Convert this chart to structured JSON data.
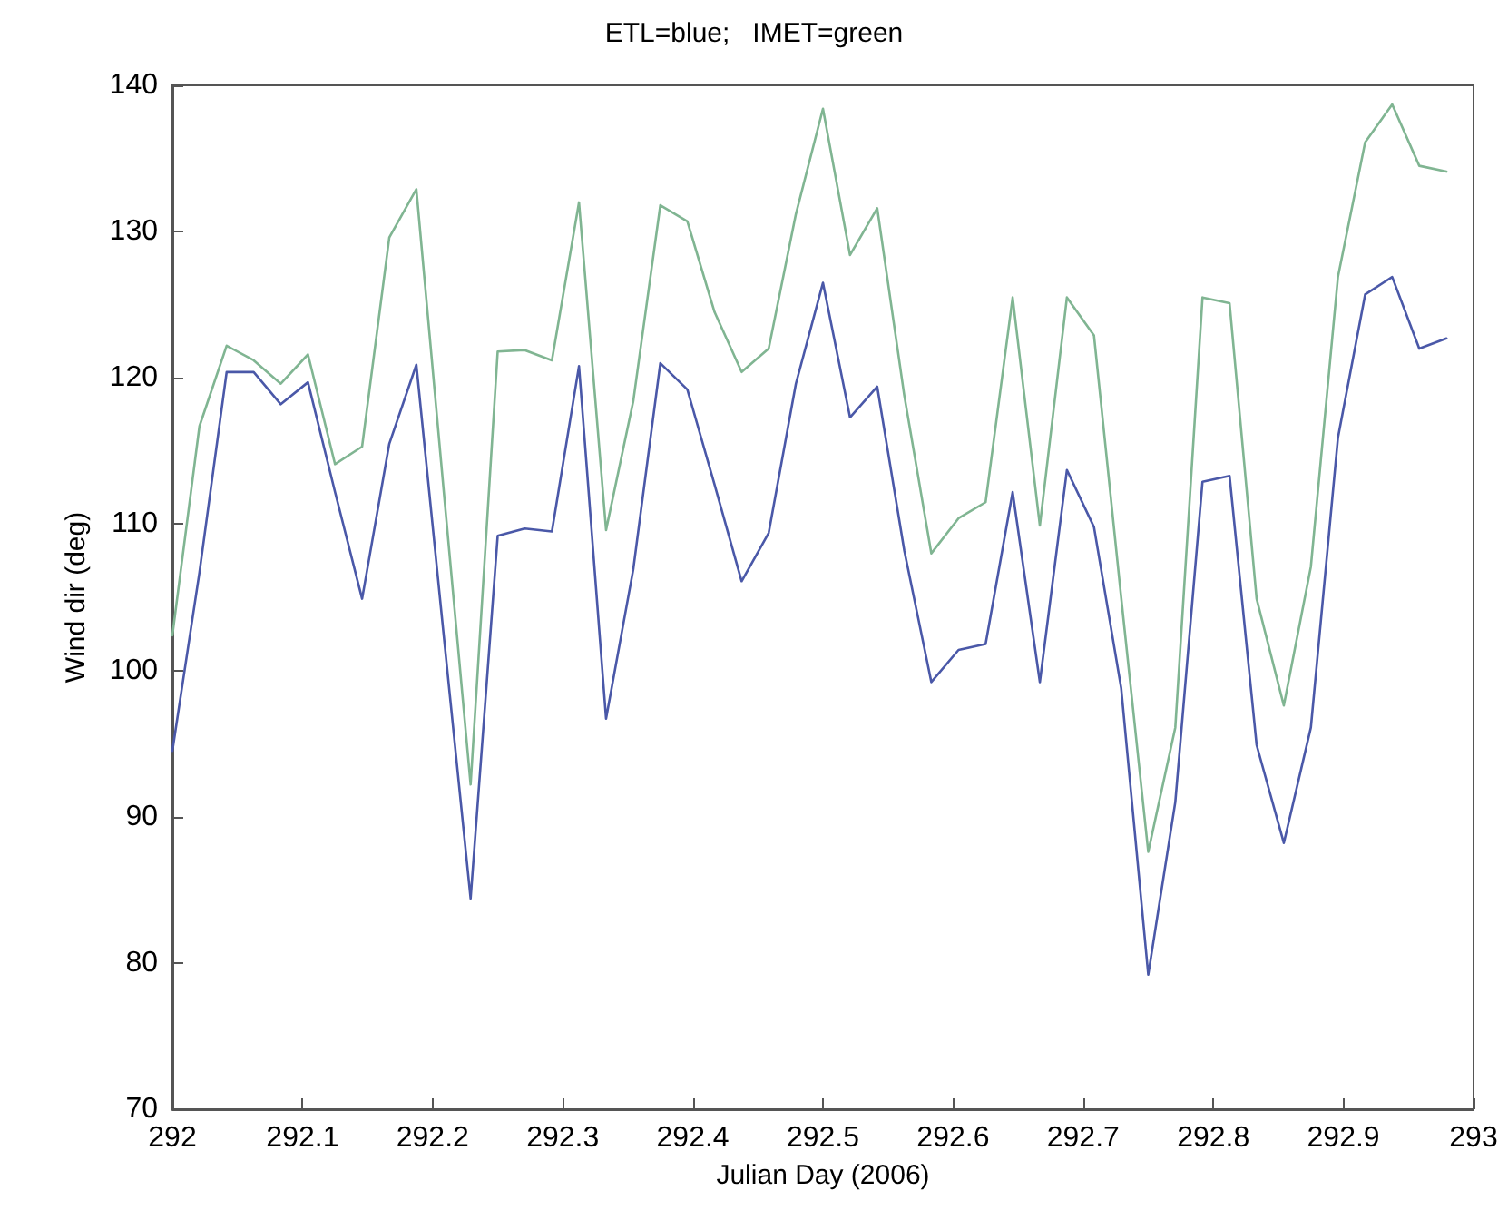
{
  "chart_data": {
    "type": "line",
    "title": "ETL=blue;   IMET=green",
    "xlabel": "Julian Day (2006)",
    "ylabel": "Wind dir (deg)",
    "x": [
      292,
      292.0208,
      292.0417,
      292.0625,
      292.0833,
      292.1042,
      292.125,
      292.1458,
      292.1667,
      292.1875,
      292.2083,
      292.2292,
      292.25,
      292.2708,
      292.2917,
      292.3125,
      292.3333,
      292.3542,
      292.375,
      292.3958,
      292.4167,
      292.4375,
      292.4583,
      292.4792,
      292.5,
      292.5208,
      292.5417,
      292.5625,
      292.5833,
      292.6042,
      292.625,
      292.6458,
      292.6667,
      292.6875,
      292.7083,
      292.7292,
      292.75,
      292.7708,
      292.7917,
      292.8125,
      292.8333,
      292.8542,
      292.875,
      292.8958,
      292.9167,
      292.9375,
      292.9583,
      292.9792
    ],
    "series": [
      {
        "color": "#4a58a8",
        "values": [
          94.5,
          106.7,
          120.4,
          120.4,
          118.2,
          119.7,
          112.2,
          104.9,
          115.5,
          120.9,
          102.6,
          84.4,
          109.2,
          109.7,
          109.5,
          120.8,
          96.7,
          106.9,
          121.0,
          119.2,
          112.7,
          106.1,
          109.4,
          119.6,
          126.5,
          117.3,
          119.4,
          108.2,
          99.2,
          101.4,
          101.8,
          112.2,
          99.2,
          113.7,
          109.8,
          98.8,
          79.2,
          91,
          112.9,
          113.3,
          94.9,
          88.2,
          96.1,
          115.9,
          125.7,
          126.9,
          122.0,
          122.7
        ]
      },
      {
        "color": "#80b592",
        "values": [
          102.4,
          116.7,
          122.2,
          121.2,
          119.6,
          121.6,
          114.1,
          115.3,
          129.6,
          132.9,
          112.5,
          92.2,
          121.8,
          121.9,
          121.2,
          132.0,
          109.6,
          118.4,
          131.8,
          130.7,
          124.5,
          120.4,
          122.0,
          131.2,
          138.4,
          128.4,
          131.6,
          118.8,
          108.0,
          110.4,
          111.5,
          125.5,
          109.9,
          125.5,
          122.9,
          105,
          87.6,
          96.1,
          125.5,
          125.1,
          104.9,
          97.6,
          107.1,
          126.9,
          136.1,
          138.7,
          134.5,
          134.1
        ]
      }
    ],
    "xlim": [
      292,
      293
    ],
    "xticks": [
      292,
      292.1,
      292.2,
      292.3,
      292.4,
      292.5,
      292.6,
      292.7,
      292.8,
      292.9,
      293
    ],
    "ylim": [
      70,
      140
    ],
    "yticks": [
      70,
      80,
      90,
      100,
      110,
      120,
      130,
      140
    ],
    "grid": false,
    "marker": "none",
    "line_style": "solid"
  }
}
